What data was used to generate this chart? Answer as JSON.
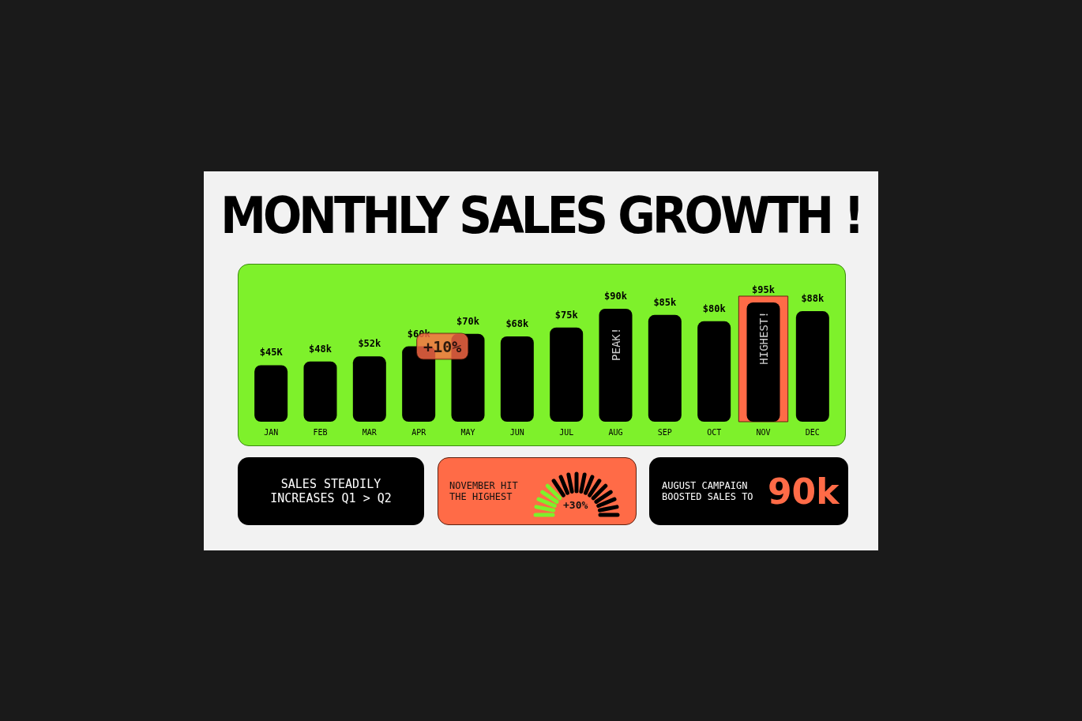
{
  "chart_data": {
    "type": "bar",
    "title": "MONTHLY SALES GROWTH !",
    "categories": [
      "JAN",
      "FEB",
      "MAR",
      "APR",
      "MAY",
      "JUN",
      "JUL",
      "AUG",
      "SEP",
      "OCT",
      "NOV",
      "DEC"
    ],
    "values": [
      45,
      48,
      52,
      60,
      70,
      68,
      75,
      90,
      85,
      80,
      95,
      88
    ],
    "value_labels": [
      "$45K",
      "$48k",
      "$52k",
      "$60k",
      "$70k",
      "$68k",
      "$75k",
      "$90k",
      "$85k",
      "$80k",
      "$95k",
      "$88k"
    ],
    "color": "#000000",
    "bands": [
      {
        "axis": "x",
        "from": "NOV",
        "to": "NOV",
        "color": "#ff6b47"
      }
    ],
    "annotations": [
      {
        "text": "+10%",
        "x": "APR",
        "y": 60
      },
      {
        "text": "PEAK!",
        "x": "AUG",
        "y": 90
      },
      {
        "text": "HIGHEST!",
        "x": "NOV",
        "y": 95
      },
      "SALES STEADILY INCREASES Q1 > Q2",
      "NOVEMBER HIT THE HIGHEST",
      "+30%",
      "AUGUST CAMPAIGN BOOSTED SALES TO",
      "90k"
    ],
    "grid": false
  }
}
